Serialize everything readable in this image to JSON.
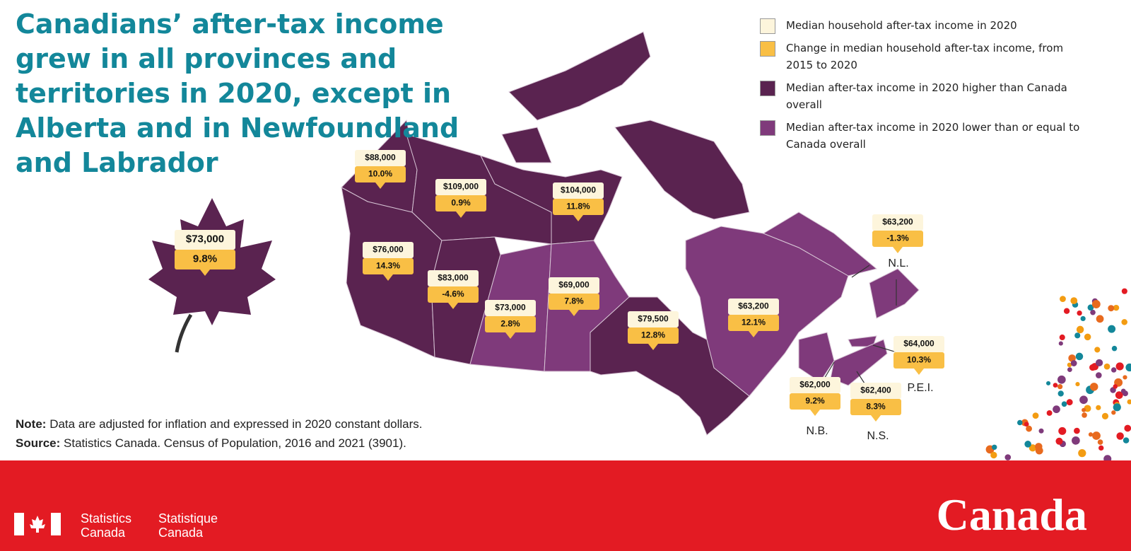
{
  "title": "Canadians’ after-tax income grew in all provinces and territories in 2020, except in Alberta and in Newfoundland and Labrador",
  "legend": [
    {
      "label": "Median household after-tax income in 2020",
      "color": "#fdf5dc"
    },
    {
      "label": "Change in median household after-tax income, from 2015 to 2020",
      "color": "#f9bf45"
    },
    {
      "label": "Median after-tax income in 2020 higher than Canada overall",
      "color": "#5a2350"
    },
    {
      "label": "Median after-tax income in 2020 lower than or equal to Canada overall",
      "color": "#7f3a7b"
    }
  ],
  "canada": {
    "income": "$73,000",
    "change": "9.8%",
    "color": "#5a2350"
  },
  "regions": [
    {
      "income": "$88,000",
      "change": "10.0%",
      "color": "#5a2350"
    },
    {
      "income": "$109,000",
      "change": "0.9%",
      "color": "#5a2350"
    },
    {
      "income": "$104,000",
      "change": "11.8%",
      "color": "#5a2350"
    },
    {
      "income": "$76,000",
      "change": "14.3%",
      "color": "#5a2350"
    },
    {
      "income": "$83,000",
      "change": "-4.6%",
      "color": "#5a2350"
    },
    {
      "income": "$73,000",
      "change": "2.8%",
      "color": "#7f3a7b"
    },
    {
      "income": "$69,000",
      "change": "7.8%",
      "color": "#7f3a7b"
    },
    {
      "income": "$79,500",
      "change": "12.8%",
      "color": "#5a2350"
    },
    {
      "income": "$63,200",
      "change": "12.1%",
      "color": "#7f3a7b"
    },
    {
      "name": "N.L.",
      "income": "$63,200",
      "change": "-1.3%",
      "color": "#7f3a7b"
    },
    {
      "name": "P.E.I.",
      "income": "$64,000",
      "change": "10.3%",
      "color": "#7f3a7b"
    },
    {
      "name": "N.B.",
      "income": "$62,000",
      "change": "9.2%",
      "color": "#7f3a7b"
    },
    {
      "name": "N.S.",
      "income": "$62,400",
      "change": "8.3%",
      "color": "#7f3a7b"
    }
  ],
  "note": {
    "label": "Note:",
    "text": "Data are adjusted for inflation and expressed in 2020 constant dollars."
  },
  "source": {
    "label": "Source:",
    "text": "Statistics Canada. Census of Population, 2016 and 2021 (3901)."
  },
  "footer": {
    "agency_en": "Statistics Canada",
    "agency_fr": "Statistique Canada",
    "wordmark": "Canada"
  }
}
